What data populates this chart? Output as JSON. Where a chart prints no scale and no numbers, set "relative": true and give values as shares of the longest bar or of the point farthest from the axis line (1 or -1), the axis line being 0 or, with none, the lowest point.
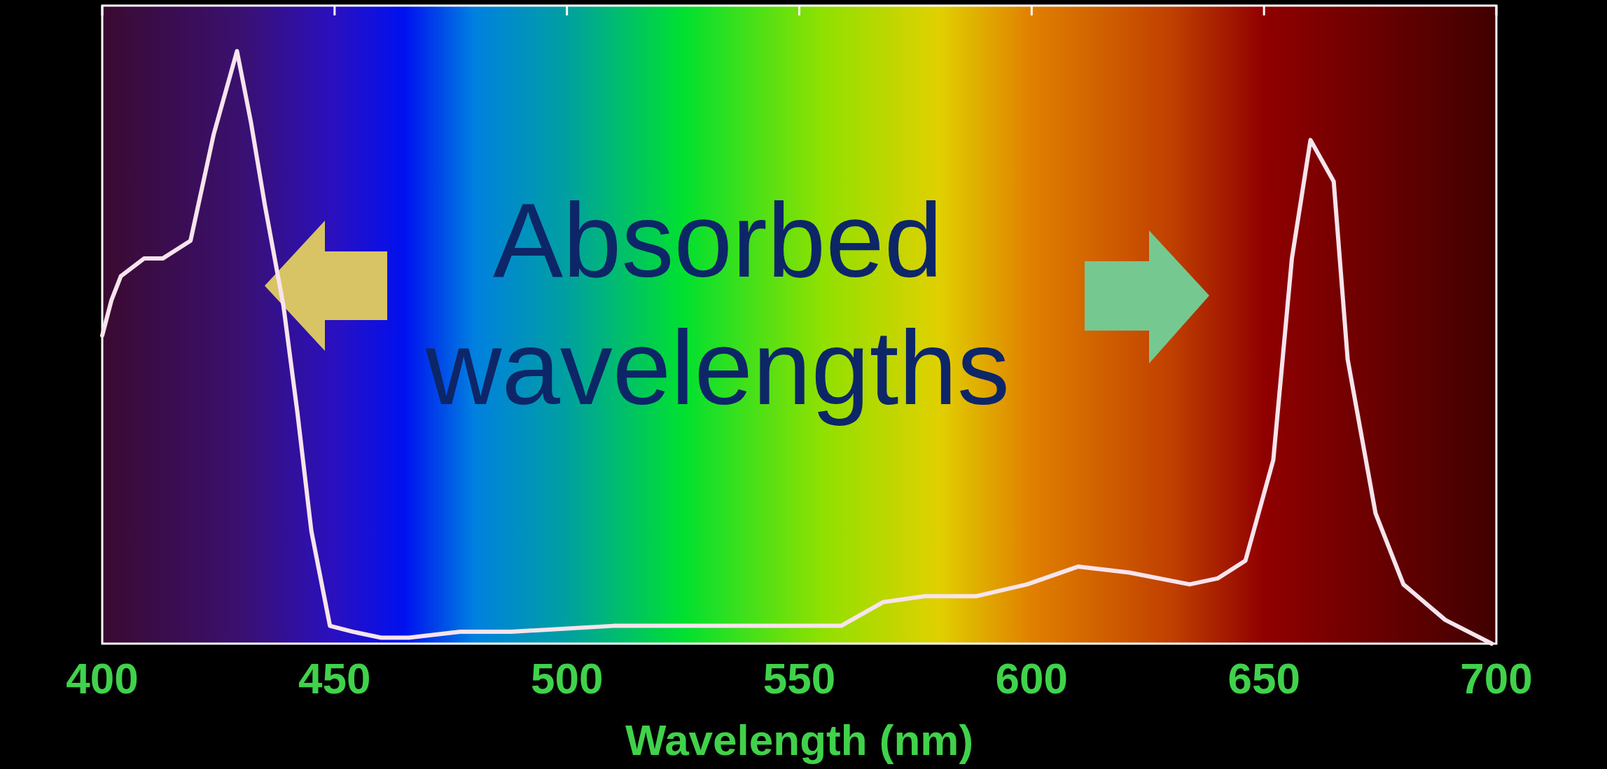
{
  "chart_data": {
    "type": "line",
    "relative": true,
    "xlabel": "Wavelength (nm)",
    "xlim": [
      400,
      700
    ],
    "xticks": [
      400,
      450,
      500,
      550,
      600,
      650,
      700
    ],
    "annotations": [
      "Absorbed wavelengths"
    ],
    "grid": false,
    "x": [
      400,
      402,
      404,
      409,
      413,
      419,
      424,
      429,
      432,
      435,
      439,
      442,
      445,
      449,
      454,
      460,
      466,
      477,
      488,
      510,
      532,
      559,
      568,
      577,
      588,
      599,
      610,
      621,
      634,
      640,
      646,
      652,
      656,
      660,
      665,
      668,
      674,
      680,
      689,
      699
    ],
    "series": [
      {
        "color": "#f8e4ec",
        "values": [
          0.52,
          0.58,
          0.62,
          0.65,
          0.65,
          0.68,
          0.86,
          1,
          0.88,
          0.74,
          0.57,
          0.39,
          0.19,
          0.03,
          0.02,
          0.01,
          0.01,
          0.02,
          0.02,
          0.03,
          0.03,
          0.03,
          0.07,
          0.08,
          0.08,
          0.1,
          0.13,
          0.12,
          0.1,
          0.11,
          0.14,
          0.31,
          0.65,
          0.85,
          0.78,
          0.48,
          0.22,
          0.1,
          0.04,
          0
        ]
      }
    ]
  }
}
